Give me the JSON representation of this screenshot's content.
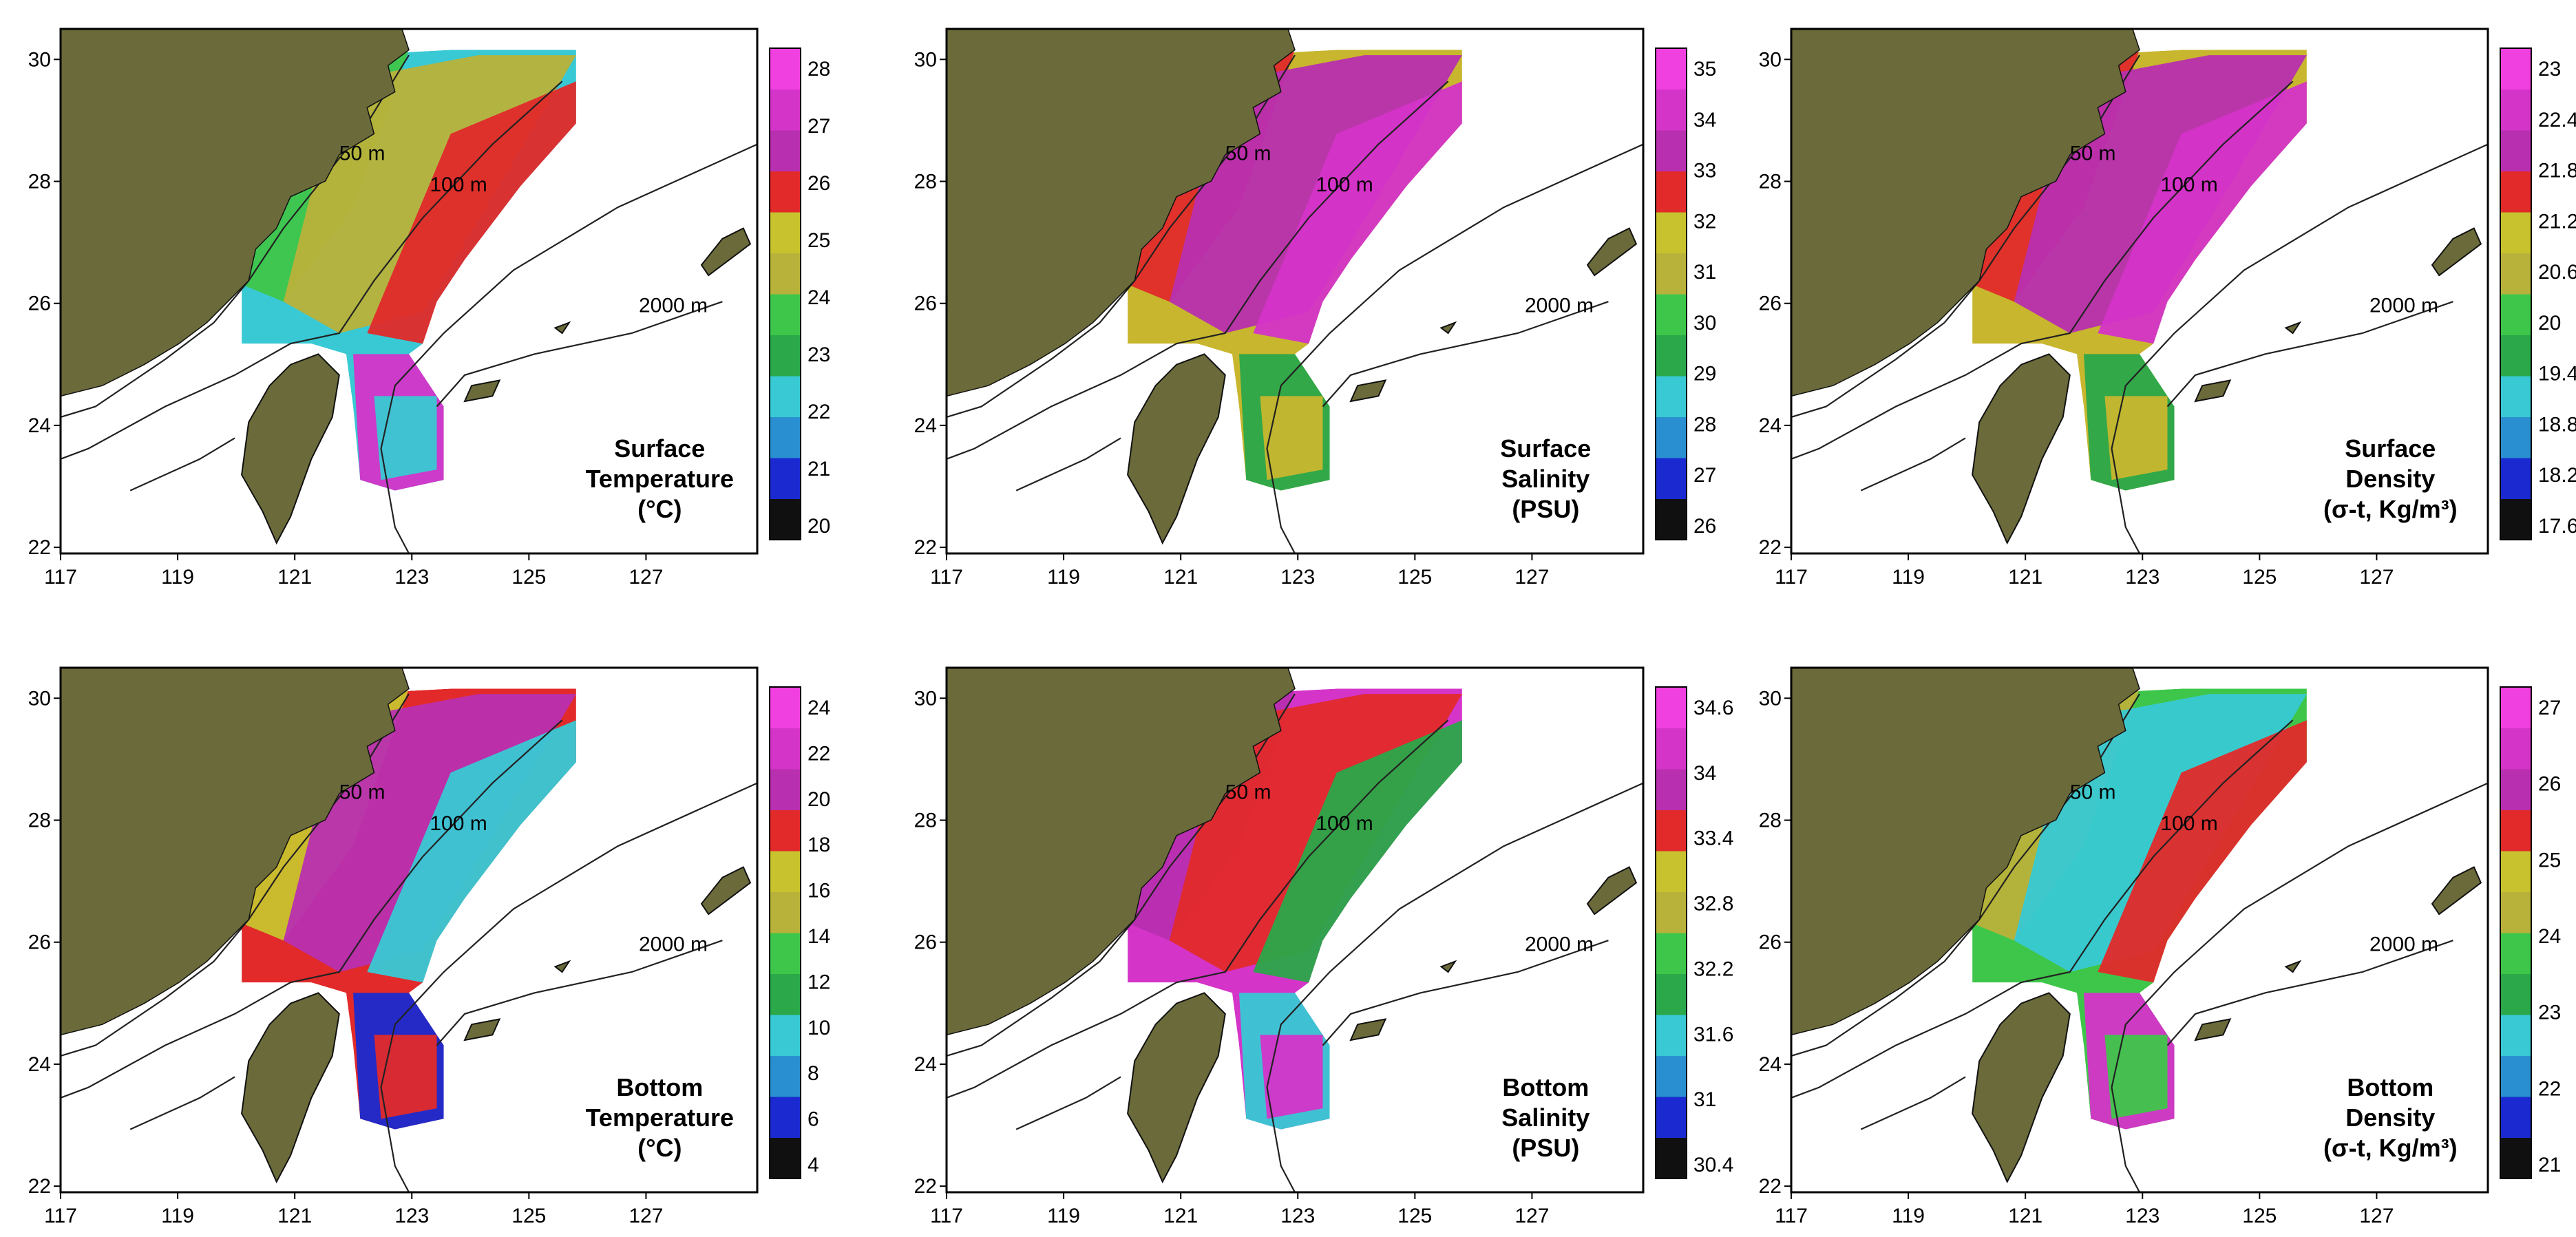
{
  "x_ticks": [
    "117",
    "119",
    "121",
    "123",
    "125",
    "127"
  ],
  "y_ticks": [
    "22",
    "24",
    "26",
    "28",
    "30"
  ],
  "contour_labels": [
    "50 m",
    "100 m",
    "2000 m"
  ],
  "colors": {
    "land": "#6b6a3a",
    "coast": "#111111",
    "isobath": "#222222"
  },
  "panels": [
    {
      "id": "surface-temperature",
      "title_lines": [
        "Surface",
        "Temperature",
        "(°C)"
      ],
      "colorbar_ticks": [
        "28",
        "27",
        "26",
        "25",
        "24",
        "23",
        "22",
        "21",
        "20"
      ],
      "dominant_colors": [
        "#38c9d4",
        "#3ec64a",
        "#b9b23a",
        "#e22a2a",
        "#d434c8"
      ]
    },
    {
      "id": "surface-salinity",
      "title_lines": [
        "Surface",
        "Salinity",
        "(PSU)"
      ],
      "colorbar_ticks": [
        "35",
        "34",
        "33",
        "32",
        "31",
        "30",
        "29",
        "28",
        "27",
        "26"
      ],
      "dominant_colors": [
        "#c8b62e",
        "#e22a2a",
        "#b82fb0",
        "#d434c8",
        "#2aa84a"
      ]
    },
    {
      "id": "surface-density",
      "title_lines": [
        "Surface",
        "Density",
        "(σ-t, Kg/m³)"
      ],
      "colorbar_ticks": [
        "23",
        "22.4",
        "21.8",
        "21.2",
        "20.6",
        "20",
        "19.4",
        "18.8",
        "18.2",
        "17.6"
      ],
      "dominant_colors": [
        "#c8b62e",
        "#e22a2a",
        "#b82fb0",
        "#d434c8",
        "#2aa84a"
      ]
    },
    {
      "id": "bottom-temperature",
      "title_lines": [
        "Bottom",
        "Temperature",
        "(°C)"
      ],
      "colorbar_ticks": [
        "24",
        "22",
        "20",
        "18",
        "16",
        "14",
        "12",
        "10",
        "8",
        "6",
        "4"
      ],
      "dominant_colors": [
        "#e22a2a",
        "#c8c22e",
        "#b82fb0",
        "#38c9d4",
        "#1a2ad0"
      ]
    },
    {
      "id": "bottom-salinity",
      "title_lines": [
        "Bottom",
        "Salinity",
        "(PSU)"
      ],
      "colorbar_ticks": [
        "34.6",
        "34",
        "33.4",
        "32.8",
        "32.2",
        "31.6",
        "31",
        "30.4"
      ],
      "dominant_colors": [
        "#d434c8",
        "#b82fb0",
        "#e22a2a",
        "#2aa84a",
        "#38c9d4"
      ]
    },
    {
      "id": "bottom-density",
      "title_lines": [
        "Bottom",
        "Density",
        "(σ-t, Kg/m³)"
      ],
      "colorbar_ticks": [
        "27",
        "26",
        "25",
        "24",
        "23",
        "22",
        "21"
      ],
      "dominant_colors": [
        "#3ec64a",
        "#b9b23a",
        "#38c9d4",
        "#e22a2a",
        "#d434c8"
      ]
    }
  ]
}
